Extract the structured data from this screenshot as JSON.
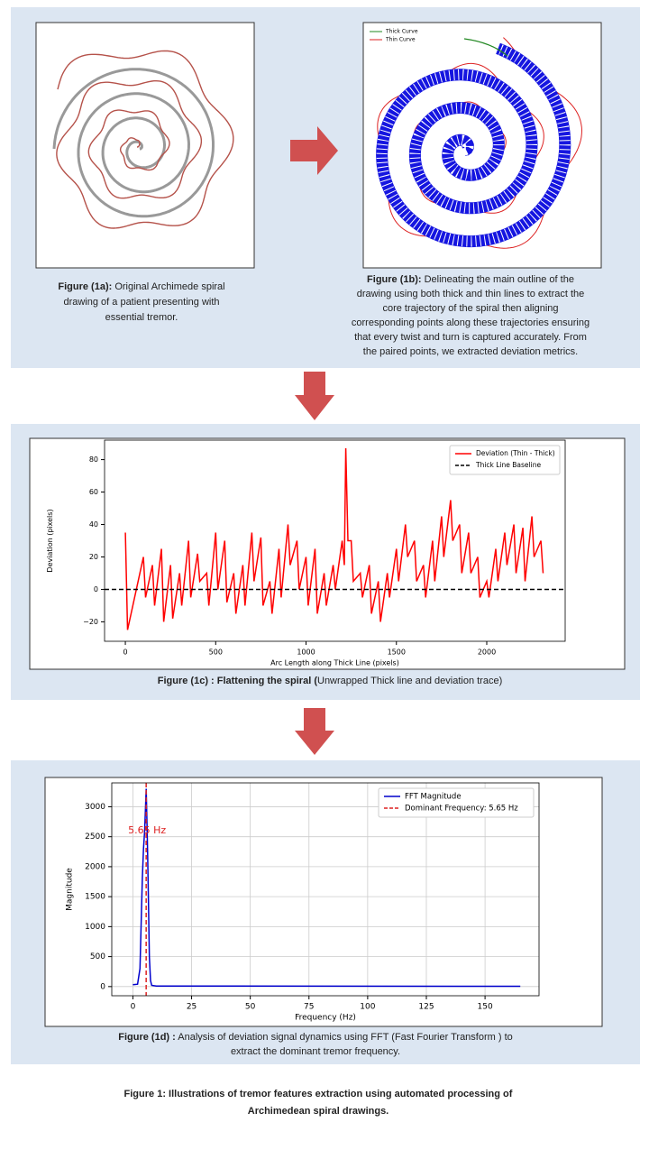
{
  "figure_1a": {
    "caption": {
      "label": "Figure (1a):",
      "lines": [
        " Original Archimede spiral",
        "drawing  of a patient presenting with",
        "essential tremor."
      ]
    }
  },
  "figure_1b": {
    "legend": [
      "Thick Curve",
      "Thin Curve"
    ],
    "caption": {
      "label": "Figure (1b):",
      "lines": [
        " Delineating the main outline of the",
        "drawing using both thick and thin lines to extract  the",
        "core trajectory  of the spiral  then aligning",
        "corresponding points along these trajectories  ensuring",
        "that every  twist and turn is captured accurately.  From",
        "the paired points, we extracted  deviation metrics."
      ]
    }
  },
  "chart_data": [
    {
      "type": "line",
      "x_label": "Arc Length along Thick Line (pixels)",
      "y_label": "Deviation (pixels)",
      "xlim": [
        -115,
        2434
      ],
      "ylim": [
        -32,
        92
      ],
      "xticks": [
        0,
        500,
        1000,
        1500,
        2000
      ],
      "yticks": [
        {
          "value": -20,
          "label": "−20"
        },
        0,
        20,
        40,
        60,
        80
      ],
      "grid": false,
      "legend": "upper right",
      "series": [
        {
          "name": "Deviation (Thin - Thick)",
          "color": "#ff0000",
          "x": [
            0,
            12,
            100,
            112,
            150,
            162,
            200,
            212,
            250,
            262,
            300,
            312,
            350,
            362,
            400,
            412,
            450,
            462,
            500,
            512,
            550,
            562,
            600,
            612,
            650,
            662,
            700,
            712,
            750,
            762,
            800,
            812,
            850,
            862,
            900,
            912,
            950,
            962,
            1000,
            1012,
            1050,
            1062,
            1100,
            1112,
            1150,
            1162,
            1200,
            1212,
            1220,
            1232,
            1250,
            1262,
            1300,
            1312,
            1350,
            1362,
            1400,
            1412,
            1450,
            1462,
            1500,
            1512,
            1550,
            1562,
            1600,
            1612,
            1650,
            1662,
            1700,
            1712,
            1750,
            1762,
            1800,
            1812,
            1850,
            1862,
            1900,
            1912,
            1950,
            1962,
            2000,
            2012,
            2050,
            2062,
            2100,
            2112,
            2150,
            2162,
            2200,
            2212,
            2250,
            2262,
            2300,
            2312
          ],
          "values": [
            35,
            -25,
            20,
            -5,
            15,
            -10,
            25,
            -20,
            15,
            -18,
            10,
            -10,
            30,
            -5,
            22,
            5,
            10,
            -10,
            35,
            0,
            30,
            -8,
            10,
            -15,
            15,
            -10,
            35,
            5,
            32,
            -10,
            5,
            -15,
            25,
            -5,
            40,
            15,
            30,
            0,
            20,
            -10,
            25,
            -15,
            10,
            -10,
            15,
            0,
            30,
            15,
            87,
            30,
            30,
            5,
            10,
            -5,
            15,
            -15,
            5,
            -20,
            10,
            -5,
            25,
            5,
            40,
            20,
            30,
            5,
            15,
            -5,
            30,
            5,
            45,
            20,
            55,
            30,
            40,
            10,
            35,
            10,
            20,
            -5,
            5,
            -5,
            25,
            5,
            35,
            15,
            40,
            10,
            38,
            5,
            45,
            20,
            30,
            10
          ]
        },
        {
          "name": "Thick Line Baseline",
          "color": "#000000",
          "dashed": true,
          "hline": 0
        }
      ],
      "caption": {
        "label": "Figure (1c) : Flattening the spiral (",
        "lines": [
          "Unwrapped Thick line and deviation trace)"
        ]
      }
    },
    {
      "type": "line",
      "x_label": "Frequency (Hz)",
      "y_label": "Magnitude",
      "xlim": [
        -9,
        173
      ],
      "ylim": [
        -153,
        3398
      ],
      "xticks": [
        0,
        25,
        50,
        75,
        100,
        125,
        150
      ],
      "yticks": [
        0,
        500,
        1000,
        1500,
        2000,
        2500,
        3000
      ],
      "grid": true,
      "legend": "upper right",
      "annotation": "5.65 Hz",
      "series": [
        {
          "name": "FFT Magnitude",
          "color": "#0000cc",
          "x": [
            0,
            2,
            3,
            4,
            4.5,
            5,
            5.3,
            5.65,
            6,
            6.3,
            6.6,
            7,
            7.5,
            8,
            10,
            165
          ],
          "values": [
            30,
            40,
            300,
            1800,
            2300,
            2600,
            2900,
            3300,
            2700,
            2200,
            1500,
            500,
            100,
            20,
            10,
            5
          ]
        },
        {
          "name": "Dominant Frequency: 5.65 Hz",
          "color": "#dd2222",
          "dashed": true,
          "vline": 5.65
        }
      ],
      "caption": {
        "label": "Figure (1d) :",
        "lines": [
          " Analysis of deviation signal dynamics using FFT (Fast Fourier  Transform  ) to",
          "extract  the dominant tremor frequency."
        ]
      }
    }
  ],
  "figure_caption": [
    "Figure 1: Illustrations of tremor features extraction using automated processing of",
    "Archimedean spiral drawings."
  ]
}
